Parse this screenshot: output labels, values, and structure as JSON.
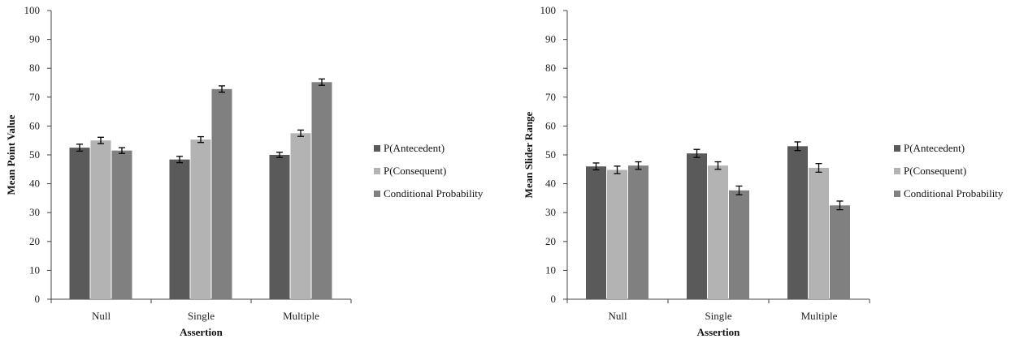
{
  "chart_data": [
    {
      "type": "bar",
      "title": "",
      "xlabel": "Assertion",
      "ylabel": "Mean Point Value",
      "ylim": [
        0,
        100
      ],
      "yticks": [
        0,
        10,
        20,
        30,
        40,
        50,
        60,
        70,
        80,
        90,
        100
      ],
      "categories": [
        "Null",
        "Single",
        "Multiple"
      ],
      "legend_position": "right",
      "error_bars": true,
      "series": [
        {
          "name": "P(Antecedent)",
          "color": "#5a5a5a",
          "values": [
            52.5,
            48.4,
            50.0
          ],
          "errors": [
            1.2,
            1.1,
            0.9
          ]
        },
        {
          "name": "P(Consequent)",
          "color": "#b3b3b3",
          "values": [
            55.0,
            55.3,
            57.5
          ],
          "errors": [
            1.1,
            1.0,
            1.1
          ]
        },
        {
          "name": "Conditional Probability",
          "color": "#808080",
          "values": [
            51.5,
            72.8,
            75.2
          ],
          "errors": [
            1.0,
            1.1,
            1.1
          ]
        }
      ]
    },
    {
      "type": "bar",
      "title": "",
      "xlabel": "Assertion",
      "ylabel": "Mean Slider Range",
      "ylim": [
        0,
        100
      ],
      "yticks": [
        0,
        10,
        20,
        30,
        40,
        50,
        60,
        70,
        80,
        90,
        100
      ],
      "categories": [
        "Null",
        "Single",
        "Multiple"
      ],
      "legend_position": "right",
      "error_bars": true,
      "series": [
        {
          "name": "P(Antecedent)",
          "color": "#5a5a5a",
          "values": [
            46.0,
            50.5,
            53.0
          ],
          "errors": [
            1.2,
            1.4,
            1.5
          ]
        },
        {
          "name": "P(Consequent)",
          "color": "#b3b3b3",
          "values": [
            44.8,
            46.3,
            45.5
          ],
          "errors": [
            1.3,
            1.3,
            1.5
          ]
        },
        {
          "name": "Conditional Probability",
          "color": "#808080",
          "values": [
            46.3,
            37.7,
            32.5
          ],
          "errors": [
            1.3,
            1.5,
            1.5
          ]
        }
      ]
    }
  ]
}
